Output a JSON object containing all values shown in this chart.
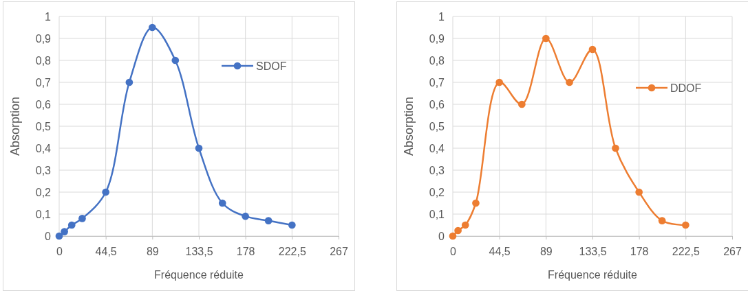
{
  "chart_data": [
    {
      "type": "line",
      "xlabel": "Fréquence réduite",
      "ylabel": "Absorption",
      "x": [
        0,
        5,
        12,
        22,
        44.5,
        67,
        89,
        111,
        133.5,
        156,
        178,
        200,
        222.5
      ],
      "series": [
        {
          "name": "SDOF",
          "color": "#4472c4",
          "values": [
            0,
            0.02,
            0.05,
            0.08,
            0.2,
            0.7,
            0.95,
            0.8,
            0.4,
            0.15,
            0.09,
            0.07,
            0.05
          ]
        }
      ],
      "xlim": [
        0,
        267
      ],
      "xticks": [
        {
          "value": 0,
          "label": "0"
        },
        {
          "value": 44.5,
          "label": "44,5"
        },
        89,
        {
          "value": 133.5,
          "label": "133,5"
        },
        178,
        {
          "value": 222.5,
          "label": "222,5"
        },
        267
      ],
      "ylim": [
        0,
        1
      ],
      "yticks": [
        {
          "value": 0,
          "label": "0"
        },
        {
          "value": 0.1,
          "label": "0,1"
        },
        {
          "value": 0.2,
          "label": "0,2"
        },
        {
          "value": 0.3,
          "label": "0,3"
        },
        {
          "value": 0.4,
          "label": "0,4"
        },
        {
          "value": 0.5,
          "label": "0,5"
        },
        {
          "value": 0.6,
          "label": "0,6"
        },
        {
          "value": 0.7,
          "label": "0,7"
        },
        {
          "value": 0.8,
          "label": "0,8"
        },
        {
          "value": 0.9,
          "label": "0,9"
        },
        1
      ],
      "grid": true,
      "legend": "top right",
      "marker": "circle",
      "line_style": "solid"
    },
    {
      "type": "line",
      "xlabel": "Fréquence réduite",
      "ylabel": "Absorption",
      "x": [
        0,
        5,
        12,
        22,
        44.5,
        66,
        89,
        111.5,
        133.5,
        155.5,
        178,
        200,
        222.5
      ],
      "series": [
        {
          "name": "DDOF",
          "color": "#ed7d31",
          "values": [
            0,
            0.025,
            0.05,
            0.15,
            0.7,
            0.6,
            0.9,
            0.7,
            0.85,
            0.4,
            0.2,
            0.07,
            0.05
          ]
        }
      ],
      "xlim": [
        0,
        267
      ],
      "xticks": [
        {
          "value": 0,
          "label": "0"
        },
        {
          "value": 44.5,
          "label": "44,5"
        },
        89,
        {
          "value": 133.5,
          "label": "133,5"
        },
        178,
        {
          "value": 222.5,
          "label": "222,5"
        },
        267
      ],
      "ylim": [
        0,
        1
      ],
      "yticks": [
        {
          "value": 0,
          "label": "0"
        },
        {
          "value": 0.1,
          "label": "0,1"
        },
        {
          "value": 0.2,
          "label": "0,2"
        },
        {
          "value": 0.3,
          "label": "0,3"
        },
        {
          "value": 0.4,
          "label": "0,4"
        },
        {
          "value": 0.5,
          "label": "0,5"
        },
        {
          "value": 0.6,
          "label": "0,6"
        },
        {
          "value": 0.7,
          "label": "0,7"
        },
        {
          "value": 0.8,
          "label": "0,8"
        },
        {
          "value": 0.9,
          "label": "0,9"
        },
        1
      ],
      "grid": true,
      "legend": "right",
      "marker": "circle",
      "line_style": "solid"
    }
  ]
}
